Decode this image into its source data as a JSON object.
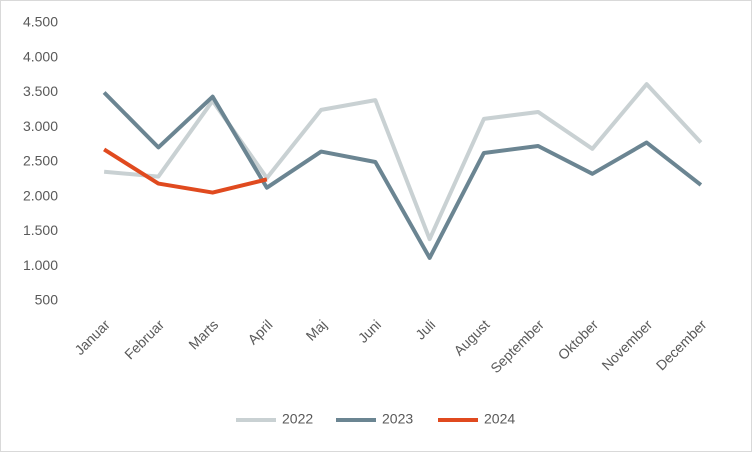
{
  "chart_data": {
    "type": "line",
    "categories": [
      "Januar",
      "Februar",
      "Marts",
      "April",
      "Maj",
      "Juni",
      "Juli",
      "August",
      "September",
      "Oktober",
      "November",
      "December"
    ],
    "series": [
      {
        "name": "2022",
        "color": "#c9d1d3",
        "values": [
          2360,
          2290,
          3380,
          2270,
          3250,
          3390,
          1390,
          3120,
          3220,
          2690,
          3620,
          2780
        ]
      },
      {
        "name": "2023",
        "color": "#6b8592",
        "values": [
          3500,
          2710,
          3440,
          2130,
          2650,
          2500,
          1120,
          2630,
          2730,
          2330,
          2780,
          2170
        ]
      },
      {
        "name": "2024",
        "color": "#e04a1f",
        "values": [
          2680,
          2190,
          2060,
          2250,
          null,
          null,
          null,
          null,
          null,
          null,
          null,
          null
        ]
      }
    ],
    "ylim": [
      500,
      4500
    ],
    "yticks": [
      500,
      {
        "value": 1000,
        "label": "1.000"
      },
      {
        "value": 1500,
        "label": "1.500"
      },
      {
        "value": 2000,
        "label": "2.000"
      },
      {
        "value": 2500,
        "label": "2.500"
      },
      {
        "value": 3000,
        "label": "3.000"
      },
      {
        "value": 3500,
        "label": "3.500"
      },
      {
        "value": 4000,
        "label": "4.000"
      },
      {
        "value": 4500,
        "label": "4.500"
      }
    ],
    "legend": "bottom"
  }
}
